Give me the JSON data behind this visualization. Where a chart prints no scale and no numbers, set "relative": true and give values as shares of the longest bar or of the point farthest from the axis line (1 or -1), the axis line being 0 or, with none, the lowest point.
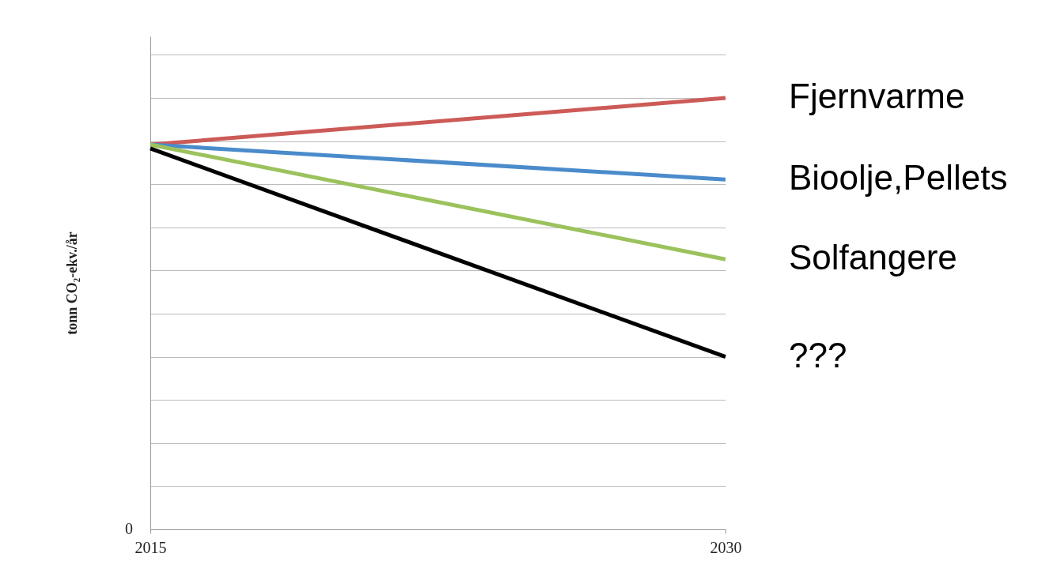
{
  "chart_data": {
    "type": "line",
    "relative": true,
    "ylabel": "tonn CO₂-ekv./år",
    "xlim": [
      2015,
      2030
    ],
    "xticks": [
      2015,
      2030
    ],
    "x": [
      2015,
      2030
    ],
    "grid": "y",
    "line_style": "solid",
    "annotations": [
      "0"
    ],
    "series": [
      {
        "name": "Fjernvarme",
        "color": "#cc5b57",
        "values": [
          0.892,
          1
        ]
      },
      {
        "name": "Bioolje,Pellets",
        "color": "#4a8bcb",
        "values": [
          0.892,
          0.811
        ]
      },
      {
        "name": "Solfangere",
        "color": "#9bc25c",
        "values": [
          0.892,
          0.626
        ]
      },
      {
        "name": "???",
        "color": "#000000",
        "values": [
          0.883,
          0.4
        ]
      }
    ]
  }
}
